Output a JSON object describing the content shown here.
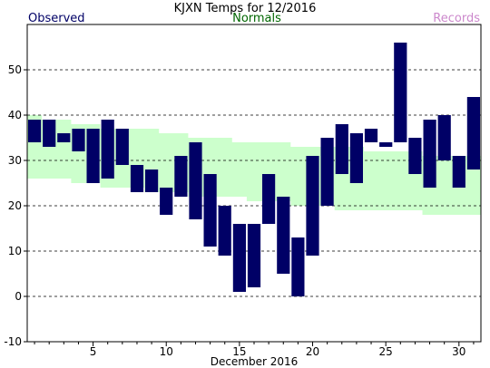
{
  "header": {
    "title": "KJXN Temps for 12/2016",
    "observed_label": "Observed",
    "normals_label": "Normals",
    "records_label": "Records"
  },
  "colors": {
    "observed_bar": "#000066",
    "normals_band": "#ccffcc",
    "observed_text": "#000066",
    "normals_text": "#006600",
    "records_text": "#cc88cc",
    "grid": "#000000",
    "background": "#ffffff"
  },
  "chart_data": {
    "type": "bar",
    "subtype": "floating-range",
    "title": "KJXN Temps for 12/2016",
    "xlabel": "December 2016",
    "ylabel": "",
    "xlim": [
      0.5,
      31.5
    ],
    "ylim": [
      -10,
      60
    ],
    "yticks": [
      -10,
      0,
      10,
      20,
      30,
      40,
      50
    ],
    "xticks": [
      5,
      10,
      15,
      20,
      25,
      30
    ],
    "grid": "horizontal-dashed",
    "legend": "top",
    "series": [
      {
        "name": "Observed",
        "days": [
          1,
          2,
          3,
          4,
          5,
          6,
          7,
          8,
          9,
          10,
          11,
          12,
          13,
          14,
          15,
          16,
          17,
          18,
          19,
          20,
          21,
          22,
          23,
          24,
          25,
          26,
          27,
          28,
          29,
          30,
          31
        ],
        "high": [
          39,
          39,
          36,
          37,
          37,
          39,
          37,
          29,
          28,
          24,
          31,
          34,
          27,
          20,
          16,
          16,
          27,
          22,
          13,
          31,
          35,
          38,
          36,
          37,
          34,
          56,
          35,
          39,
          40,
          31,
          44
        ],
        "low": [
          34,
          33,
          34,
          32,
          25,
          26,
          29,
          23,
          23,
          18,
          22,
          17,
          11,
          9,
          1,
          2,
          16,
          5,
          0,
          9,
          20,
          27,
          25,
          34,
          33,
          34,
          27,
          24,
          30,
          24,
          28
        ]
      },
      {
        "name": "Normals",
        "days": [
          1,
          2,
          3,
          4,
          5,
          6,
          7,
          8,
          9,
          10,
          11,
          12,
          13,
          14,
          15,
          16,
          17,
          18,
          19,
          20,
          21,
          22,
          23,
          24,
          25,
          26,
          27,
          28,
          29,
          30,
          31
        ],
        "high": [
          40,
          39,
          39,
          38,
          38,
          37,
          37,
          37,
          37,
          36,
          36,
          35,
          35,
          35,
          34,
          34,
          34,
          34,
          33,
          33,
          33,
          33,
          33,
          32,
          32,
          32,
          32,
          31,
          31,
          31,
          31
        ],
        "low": [
          26,
          26,
          26,
          25,
          25,
          24,
          24,
          24,
          23,
          23,
          23,
          22,
          22,
          22,
          22,
          21,
          21,
          21,
          20,
          20,
          20,
          19,
          19,
          19,
          19,
          19,
          19,
          18,
          18,
          18,
          18
        ]
      }
    ]
  }
}
